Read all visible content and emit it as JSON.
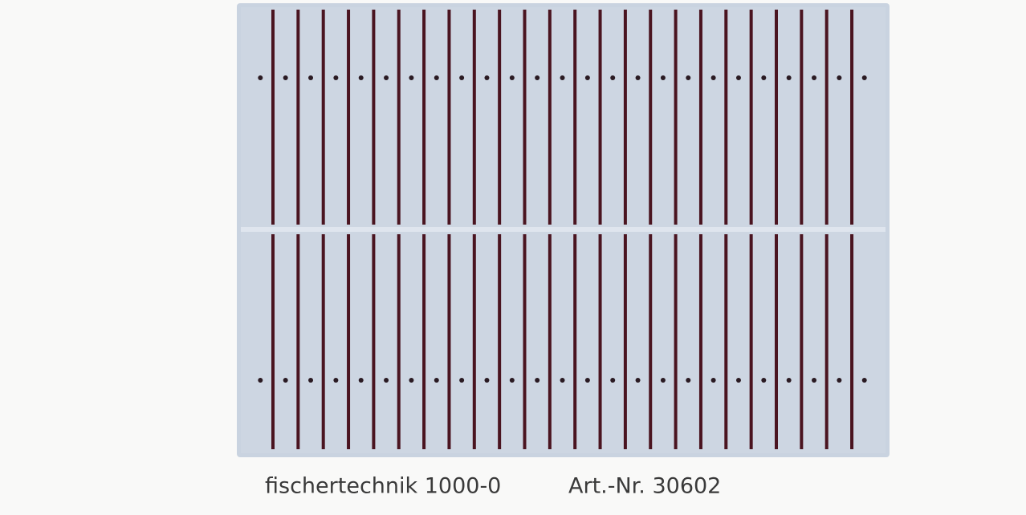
{
  "caption": {
    "product": "fischertechnik 1000-0",
    "article": "Art.-Nr. 30602"
  }
}
